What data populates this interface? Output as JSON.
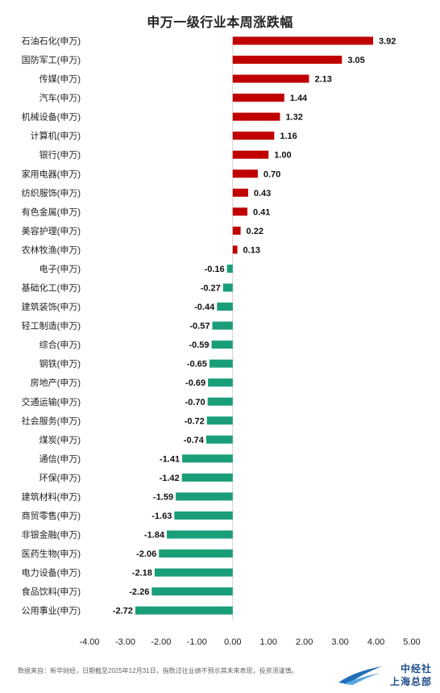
{
  "chart_data": {
    "type": "bar",
    "orientation": "horizontal",
    "title": "申万一级行业本周涨跌幅",
    "categories": [
      "石油石化(申万)",
      "国防军工(申万)",
      "传媒(申万)",
      "汽车(申万)",
      "机械设备(申万)",
      "计算机(申万)",
      "银行(申万)",
      "家用电器(申万)",
      "纺织服饰(申万)",
      "有色金属(申万)",
      "美容护理(申万)",
      "农林牧渔(申万)",
      "电子(申万)",
      "基础化工(申万)",
      "建筑装饰(申万)",
      "轻工制造(申万)",
      "综合(申万)",
      "钢铁(申万)",
      "房地产(申万)",
      "交通运输(申万)",
      "社会服务(申万)",
      "煤炭(申万)",
      "通信(申万)",
      "环保(申万)",
      "建筑材料(申万)",
      "商贸零售(申万)",
      "非银金融(申万)",
      "医药生物(申万)",
      "电力设备(申万)",
      "食品饮料(申万)",
      "公用事业(申万)"
    ],
    "values": [
      3.92,
      3.05,
      2.13,
      1.44,
      1.32,
      1.16,
      1.0,
      0.7,
      0.43,
      0.41,
      0.22,
      0.13,
      -0.16,
      -0.27,
      -0.44,
      -0.57,
      -0.59,
      -0.65,
      -0.69,
      -0.7,
      -0.72,
      -0.74,
      -1.41,
      -1.42,
      -1.59,
      -1.63,
      -1.84,
      -2.06,
      -2.18,
      -2.26,
      -2.72
    ],
    "value_labels": [
      "3.92",
      "3.05",
      "2.13",
      "1.44",
      "1.32",
      "1.16",
      "1.00",
      "0.70",
      "0.43",
      "0.41",
      "0.22",
      "0.13",
      "-0.16",
      "-0.27",
      "-0.44",
      "-0.57",
      "-0.59",
      "-0.65",
      "-0.69",
      "-0.70",
      "-0.72",
      "-0.74",
      "-1.41",
      "-1.42",
      "-1.59",
      "-1.63",
      "-1.84",
      "-2.06",
      "-2.18",
      "-2.26",
      "-2.72"
    ],
    "xlim": [
      -4,
      5
    ],
    "xticks": [
      -4,
      -3,
      -2,
      -1,
      0,
      1,
      2,
      3,
      4,
      5
    ],
    "xtick_labels": [
      "-4.00",
      "-3.00",
      "-2.00",
      "-1.00",
      "0.00",
      "1.00",
      "2.00",
      "3.00",
      "4.00",
      "5.00"
    ],
    "grid": false,
    "legend": "none",
    "colors": {
      "positive": "#c00000",
      "negative": "#1a9e7a",
      "zero_line": "#cfcfcf"
    }
  },
  "footer": {
    "source": "数据来自：新华财经，日期截至2025年12月31日，指数过往业绩不预示其未来表现，投资须谨慎。",
    "logo_line1": "中经社",
    "logo_line2": "上海总部"
  }
}
